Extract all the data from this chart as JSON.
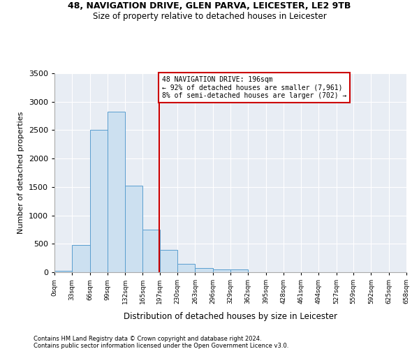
{
  "title_line1": "48, NAVIGATION DRIVE, GLEN PARVA, LEICESTER, LE2 9TB",
  "title_line2": "Size of property relative to detached houses in Leicester",
  "xlabel": "Distribution of detached houses by size in Leicester",
  "ylabel": "Number of detached properties",
  "footnote1": "Contains HM Land Registry data © Crown copyright and database right 2024.",
  "footnote2": "Contains public sector information licensed under the Open Government Licence v3.0.",
  "annotation_line1": "48 NAVIGATION DRIVE: 196sqm",
  "annotation_line2": "← 92% of detached houses are smaller (7,961)",
  "annotation_line3": "8% of semi-detached houses are larger (702) →",
  "property_size": 196,
  "bar_edges": [
    0,
    33,
    66,
    99,
    132,
    165,
    197,
    230,
    263,
    296,
    329,
    362,
    395,
    428,
    461,
    494,
    527,
    559,
    592,
    625,
    658
  ],
  "bar_heights": [
    25,
    480,
    2510,
    2820,
    1520,
    750,
    390,
    145,
    75,
    55,
    55,
    0,
    0,
    0,
    0,
    0,
    0,
    0,
    0,
    0
  ],
  "bar_color": "#cce0f0",
  "bar_edge_color": "#5a9ecf",
  "vline_x": 196,
  "vline_color": "#cc0000",
  "annotation_box_color": "#cc0000",
  "bg_color": "#e8edf4",
  "ylim": [
    0,
    3500
  ],
  "xlim": [
    0,
    658
  ],
  "tick_labels": [
    "0sqm",
    "33sqm",
    "66sqm",
    "99sqm",
    "132sqm",
    "165sqm",
    "197sqm",
    "230sqm",
    "263sqm",
    "296sqm",
    "329sqm",
    "362sqm",
    "395sqm",
    "428sqm",
    "461sqm",
    "494sqm",
    "527sqm",
    "559sqm",
    "592sqm",
    "625sqm",
    "658sqm"
  ]
}
